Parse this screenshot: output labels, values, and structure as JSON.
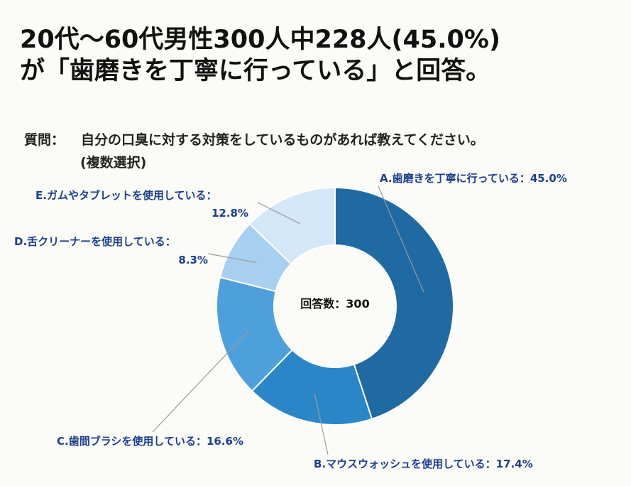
{
  "headline": {
    "line1": "20代〜60代男性300人中228人(45.0%)",
    "line2": "が「歯磨きを丁寧に行っている」と回答。"
  },
  "question": {
    "label": "質問：",
    "text": "自分の口臭に対する対策をしているものがあれば教えてください。",
    "note": "(複数選択)"
  },
  "chart_data": {
    "type": "pie",
    "donut": true,
    "center_label": "回答数：300",
    "categories": [
      "A.歯磨きを丁寧に行っている",
      "B.マウスウォッシュを使用している",
      "C.歯間ブラシを使用している",
      "D.舌クリーナーを使用している",
      "E.ガムやタブレットを使用している"
    ],
    "values": [
      45.0,
      17.4,
      16.6,
      8.3,
      12.8
    ],
    "value_labels": [
      "45.0%",
      "17.4%",
      "16.6%",
      "8.3%",
      "12.8%"
    ],
    "colors": [
      "#1f6aa3",
      "#2b86c8",
      "#4da0dc",
      "#a7cff0",
      "#d4e7f9"
    ]
  },
  "labels": {
    "a": "A.歯磨きを丁寧に行っている：45.0%",
    "b": "B.マウスウォッシュを使用している：17.4%",
    "c": "C.歯間ブラシを使用している：16.6%",
    "d1": "D.舌クリーナーを使用している：",
    "d2": "8.3%",
    "e1": "E.ガムやタブレットを使用している：",
    "e2": "12.8%"
  }
}
